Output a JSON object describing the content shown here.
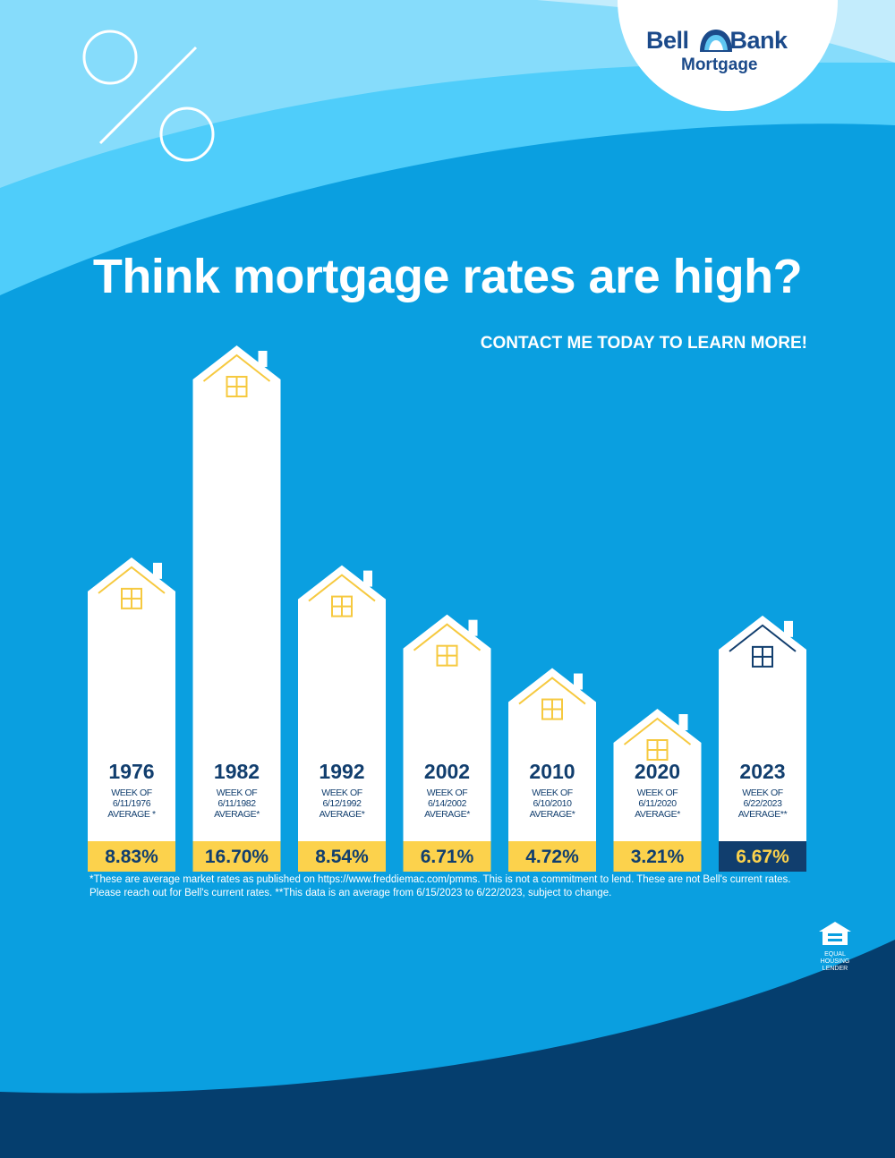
{
  "brand": {
    "logo_line1_a": "Bell",
    "logo_line1_b": "Bank",
    "logo_line2": "Mortgage"
  },
  "headline": "Think mortgage rates are high?",
  "cta": "CONTACT ME TODAY TO LEARN MORE!",
  "footnote": "*These are average market rates as published on https://www.freddiemac.com/pmms. This is not a commitment to lend. These are not Bell's current rates. Please reach out for Bell's current rates. **This data is an average from 6/15/2023 to 6/22/2023, subject to change.",
  "eho_label": "EQUAL HOUSING LENDER",
  "colors": {
    "navy": "#113e6e",
    "yellow": "#fcd24c",
    "house_yellow": "#f6c93f",
    "blue": "#0a9fe0",
    "white": "#ffffff"
  },
  "icons": [
    "percent-icon",
    "bell-logo-icon",
    "house-roof-icon",
    "window-icon",
    "equal-housing-icon"
  ],
  "chart_data": {
    "type": "bar",
    "categories": [
      "1976",
      "1982",
      "1992",
      "2002",
      "2010",
      "2020",
      "2023"
    ],
    "values": [
      8.83,
      16.7,
      8.54,
      6.71,
      4.72,
      3.21,
      6.67
    ],
    "value_labels": [
      "8.83%",
      "16.70%",
      "8.54%",
      "6.71%",
      "4.72%",
      "3.21%",
      "6.67%"
    ],
    "notes": [
      [
        "WEEK OF",
        "6/11/1976",
        "AVERAGE *"
      ],
      [
        "WEEK OF",
        "6/11/1982",
        "AVERAGE*"
      ],
      [
        "WEEK OF",
        "6/12/1992",
        "AVERAGE*"
      ],
      [
        "WEEK OF",
        "6/14/2002",
        "AVERAGE*"
      ],
      [
        "WEEK OF",
        "6/10/2010",
        "AVERAGE*"
      ],
      [
        "WEEK OF",
        "6/11/2020",
        "AVERAGE*"
      ],
      [
        "WEEK OF",
        "6/22/2023",
        "AVERAGE**"
      ]
    ],
    "highlight_index": 6,
    "title": "",
    "xlabel": "",
    "ylabel": "",
    "grid": false,
    "legend": "none"
  }
}
